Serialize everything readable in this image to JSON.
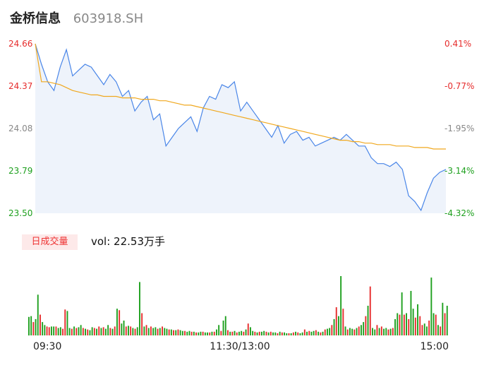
{
  "header": {
    "name": "金桥信息",
    "code": "603918.SH"
  },
  "volume": {
    "badge": "日成交量",
    "summary": "vol: 22.53万手"
  },
  "colors": {
    "up": "#e62c2c",
    "down": "#1ea01e",
    "price": "#4a86e8",
    "avg": "#f0a81e",
    "neutral": "#888888"
  },
  "chart_data": [
    {
      "type": "line",
      "title": "",
      "ylim": [
        23.5,
        24.66
      ],
      "y_ticks_left": [
        "24.66",
        "24.37",
        "24.08",
        "23.79",
        "23.50"
      ],
      "y_ticks_right": [
        "0.41%",
        "-0.77%",
        "-1.95%",
        "-3.14%",
        "-4.32%"
      ],
      "x_ticks": [
        "09:30",
        "11:30/13:00",
        "15:00"
      ],
      "series": [
        {
          "values": [
            24.66,
            24.52,
            24.4,
            24.34,
            24.5,
            24.62,
            24.44,
            24.48,
            24.52,
            24.5,
            24.44,
            24.38,
            24.45,
            24.4,
            24.3,
            24.34,
            24.2,
            24.26,
            24.3,
            24.14,
            24.18,
            23.96,
            24.02,
            24.08,
            24.12,
            24.16,
            24.06,
            24.22,
            24.3,
            24.28,
            24.38,
            24.36,
            24.4,
            24.2,
            24.26,
            24.2,
            24.14,
            24.08,
            24.02,
            24.1,
            23.98,
            24.04,
            24.06,
            24.0,
            24.02,
            23.96,
            23.98,
            24.0,
            24.02,
            24.0,
            24.04,
            24.0,
            23.96,
            23.96,
            23.88,
            23.84,
            23.84,
            23.82,
            23.85,
            23.8,
            23.62,
            23.58,
            23.52,
            23.64,
            23.74,
            23.78,
            23.8
          ]
        },
        {
          "values": [
            24.66,
            24.4,
            24.4,
            24.39,
            24.38,
            24.36,
            24.34,
            24.33,
            24.32,
            24.31,
            24.31,
            24.3,
            24.3,
            24.3,
            24.29,
            24.29,
            24.29,
            24.28,
            24.28,
            24.28,
            24.27,
            24.27,
            24.26,
            24.25,
            24.24,
            24.24,
            24.23,
            24.22,
            24.21,
            24.2,
            24.19,
            24.18,
            24.17,
            24.16,
            24.15,
            24.14,
            24.13,
            24.12,
            24.11,
            24.1,
            24.09,
            24.08,
            24.07,
            24.06,
            24.05,
            24.04,
            24.03,
            24.02,
            24.01,
            24.0,
            24.0,
            23.99,
            23.99,
            23.98,
            23.98,
            23.97,
            23.97,
            23.97,
            23.96,
            23.96,
            23.96,
            23.95,
            23.95,
            23.95,
            23.94,
            23.94,
            23.94
          ]
        }
      ]
    },
    {
      "type": "bar",
      "title": "",
      "ylim": [
        0,
        100
      ],
      "values": [
        25,
        26,
        18,
        22,
        55,
        28,
        18,
        14,
        12,
        11,
        12,
        12,
        12,
        10,
        11,
        9,
        35,
        33,
        10,
        9,
        12,
        10,
        11,
        14,
        10,
        9,
        8,
        7,
        11,
        10,
        9,
        12,
        10,
        11,
        9,
        14,
        10,
        9,
        12,
        36,
        34,
        16,
        20,
        12,
        13,
        12,
        10,
        9,
        11,
        72,
        30,
        12,
        14,
        10,
        12,
        10,
        11,
        9,
        10,
        12,
        10,
        9,
        8,
        8,
        7,
        7,
        8,
        7,
        6,
        6,
        5,
        6,
        5,
        5,
        4,
        4,
        5,
        5,
        4,
        4,
        4,
        5,
        5,
        8,
        14,
        6,
        20,
        26,
        7,
        5,
        5,
        6,
        4,
        5,
        6,
        5,
        8,
        16,
        11,
        6,
        5,
        4,
        5,
        5,
        6,
        5,
        4,
        5,
        4,
        4,
        3,
        5,
        4,
        4,
        3,
        3,
        3,
        4,
        5,
        4,
        3,
        4,
        8,
        5,
        6,
        5,
        6,
        7,
        5,
        4,
        5,
        8,
        9,
        10,
        14,
        22,
        38,
        26,
        80,
        36,
        12,
        8,
        10,
        9,
        8,
        10,
        12,
        14,
        18,
        26,
        40,
        66,
        10,
        8,
        14,
        10,
        12,
        9,
        10,
        8,
        9,
        10,
        22,
        30,
        28,
        58,
        28,
        30,
        22,
        60,
        36,
        24,
        42,
        26,
        14,
        16,
        12,
        20,
        78,
        30,
        28,
        14,
        12,
        44,
        30,
        40
      ],
      "colors": [
        "g",
        "g",
        "r",
        "g",
        "g",
        "r",
        "g",
        "g",
        "r",
        "r",
        "g",
        "g",
        "r",
        "g",
        "g",
        "r",
        "r",
        "g",
        "g",
        "r",
        "g",
        "r",
        "g",
        "g",
        "r",
        "g",
        "r",
        "g",
        "g",
        "r",
        "g",
        "r",
        "g",
        "r",
        "g",
        "g",
        "r",
        "g",
        "r",
        "g",
        "r",
        "g",
        "g",
        "r",
        "g",
        "r",
        "g",
        "r",
        "g",
        "g",
        "r",
        "g",
        "r",
        "g",
        "r",
        "g",
        "g",
        "r",
        "g",
        "r",
        "g",
        "g",
        "r",
        "g",
        "r",
        "g",
        "r",
        "g",
        "g",
        "r",
        "g",
        "g",
        "r",
        "g",
        "r",
        "g",
        "g",
        "r",
        "g",
        "g",
        "r",
        "g",
        "r",
        "g",
        "g",
        "r",
        "g",
        "g",
        "r",
        "g",
        "r",
        "g",
        "r",
        "g",
        "g",
        "r",
        "g",
        "r",
        "g",
        "g",
        "r",
        "g",
        "r",
        "g",
        "g",
        "r",
        "g",
        "r",
        "g",
        "g",
        "r",
        "g",
        "r",
        "g",
        "g",
        "r",
        "g",
        "r",
        "g",
        "r",
        "g",
        "g",
        "r",
        "g",
        "r",
        "g",
        "g",
        "r",
        "g",
        "r",
        "g",
        "r",
        "g",
        "g",
        "r",
        "g",
        "r",
        "g",
        "g",
        "r",
        "g",
        "r",
        "g",
        "g",
        "r",
        "g",
        "r",
        "g",
        "g",
        "r",
        "g",
        "r",
        "g",
        "g",
        "r",
        "g",
        "r",
        "g",
        "g",
        "r",
        "g",
        "r",
        "g",
        "g",
        "r",
        "g",
        "r",
        "g",
        "r",
        "g",
        "g",
        "r",
        "g",
        "r",
        "r",
        "g",
        "g",
        "r",
        "g",
        "g",
        "r",
        "g",
        "r",
        "g",
        "r",
        "g",
        "r",
        "g",
        "r",
        "g"
      ]
    }
  ]
}
